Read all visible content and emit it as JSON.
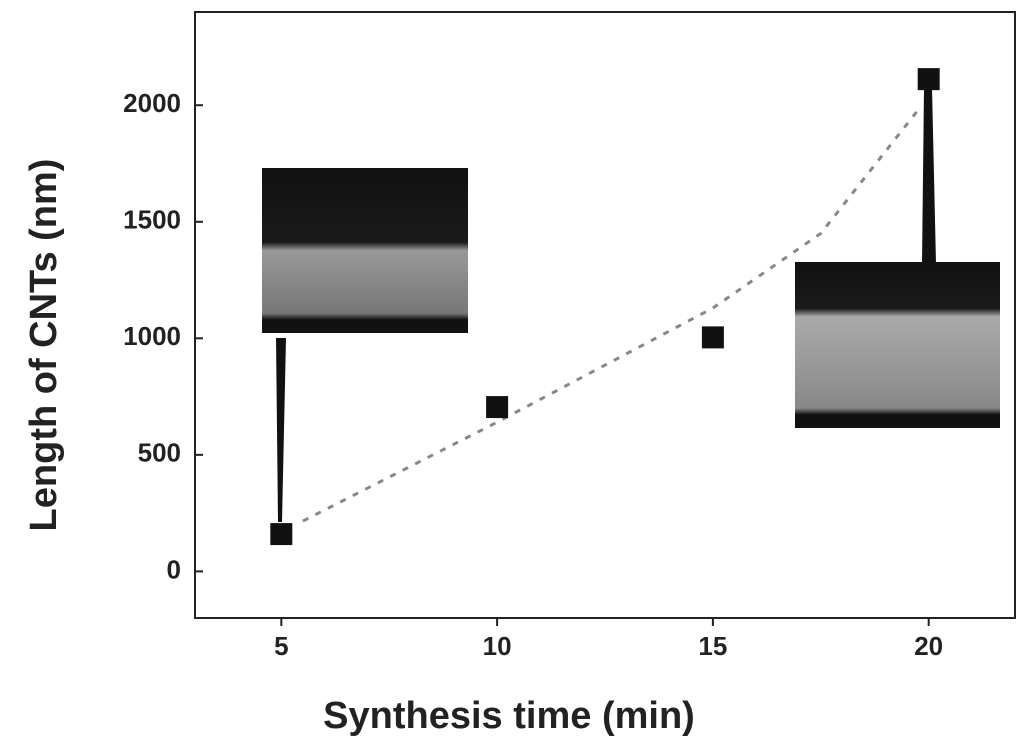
{
  "chart_data": {
    "type": "scatter",
    "x_label": "Synthesis time (min)",
    "y_label": "Length of CNTs (nm)",
    "x": [
      5,
      10,
      15,
      20
    ],
    "values": [
      160,
      705,
      1004,
      2112
    ],
    "color": "#111111",
    "fit": {
      "x": [
        5.5,
        10,
        15,
        17.5,
        19.8
      ],
      "values": [
        216,
        640,
        1130,
        1450,
        1990
      ],
      "color": "#888888"
    },
    "xlim": [
      3,
      22
    ],
    "ylim": [
      -200,
      2400
    ],
    "xticks": [
      5,
      10,
      15,
      20
    ],
    "yticks": [
      0,
      500,
      1000,
      1500,
      2000
    ],
    "grid": false
  }
}
